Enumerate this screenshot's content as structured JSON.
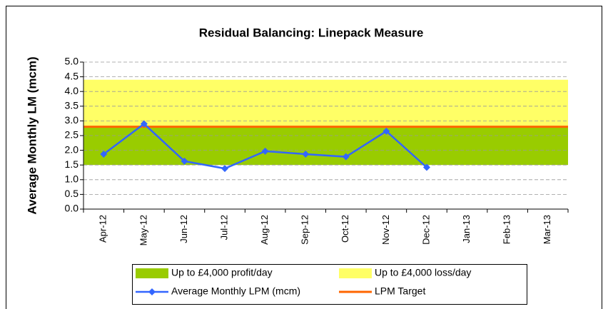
{
  "chart_data": {
    "type": "line",
    "title": "Residual Balancing: Linepack Measure",
    "y_label": "Average Monthly LM (mcm)",
    "categories": [
      "Apr-12",
      "May-12",
      "Jun-12",
      "Jul-12",
      "Aug-12",
      "Sep-12",
      "Oct-12",
      "Nov-12",
      "Dec-12",
      "Jan-13",
      "Feb-13",
      "Mar-13"
    ],
    "bands": [
      {
        "name": "Up to £4,000 profit/day",
        "color": "#99cc00",
        "from": 1.5,
        "to": 2.8
      },
      {
        "name": "Up to £4,000 loss/day",
        "color": "#ffff66",
        "from": 2.8,
        "to": 4.4
      }
    ],
    "series": [
      {
        "name": "Average Monthly LPM (mcm)",
        "color": "#3366ff",
        "values": [
          1.87,
          2.9,
          1.63,
          1.38,
          1.97,
          1.87,
          1.78,
          2.65,
          1.42,
          null,
          null,
          null
        ]
      }
    ],
    "target": {
      "name": "LPM Target",
      "color": "#ff6600",
      "value": 2.8
    },
    "ylim": [
      0,
      5
    ],
    "yticks": [
      {
        "value": 0,
        "label": "0.0"
      },
      0.5,
      {
        "value": 1,
        "label": "1.0"
      },
      1.5,
      {
        "value": 2,
        "label": "2.0"
      },
      2.5,
      {
        "value": 3,
        "label": "3.0"
      },
      3.5,
      {
        "value": 4,
        "label": "4.0"
      },
      4.5,
      {
        "value": 5,
        "label": "5.0"
      }
    ],
    "grid": true
  }
}
